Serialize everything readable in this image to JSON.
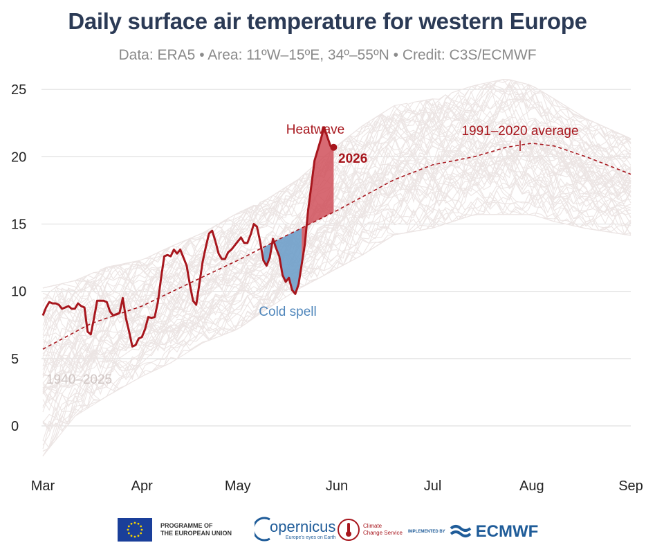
{
  "title": "Daily surface air temperature for western Europe",
  "subtitle": "Data: ERA5 • Area: 11ºW–15ºE, 34º–55ºN • Credit: C3S/ECMWF",
  "colors": {
    "current": "#a7161d",
    "heatwave_fill": "#d0505a",
    "cold_fill": "#6f9fc9",
    "history": "#ece5e4",
    "grid": "#d9d9d9"
  },
  "chart_data": {
    "type": "line",
    "x_axis": {
      "categories": [
        "Mar",
        "Apr",
        "May",
        "Jun",
        "Jul",
        "Aug",
        "Sep"
      ],
      "month_start_days": [
        0,
        31,
        61,
        92,
        122,
        153,
        184
      ]
    },
    "y_axis": {
      "ticks": [
        0,
        5,
        10,
        15,
        20,
        25
      ],
      "range": [
        -3.5,
        26.5
      ]
    },
    "grid": "horizontal",
    "annotations": {
      "history_label": "1940–2025",
      "average_label": "1991–2020 average",
      "heatwave_label": "Heatwave",
      "cold_label": "Cold spell",
      "current_label": "2026"
    },
    "history_envelope": {
      "x": [
        0,
        10,
        20,
        31,
        40,
        50,
        61,
        70,
        80,
        92,
        100,
        110,
        122,
        135,
        145,
        153,
        160,
        170,
        184
      ],
      "lower": [
        -2.5,
        0.5,
        2,
        3.5,
        4.5,
        6,
        7,
        8.5,
        10,
        11.5,
        12.5,
        14,
        14.5,
        15.5,
        15.5,
        15.5,
        15,
        14.5,
        14
      ],
      "upper": [
        10.5,
        11,
        12,
        12.5,
        13.5,
        14.5,
        16,
        17,
        18.5,
        21,
        22.5,
        24,
        24.5,
        25.5,
        26,
        25.5,
        24.5,
        23,
        21.5
      ]
    },
    "series": [
      {
        "name": "1991–2020 average",
        "style": "dashed",
        "x": [
          0,
          15,
          31,
          45,
          61,
          75,
          92,
          110,
          122,
          135,
          145,
          153,
          160,
          170,
          184
        ],
        "y": [
          5.7,
          7.6,
          8.9,
          10.5,
          12.3,
          14.0,
          16.0,
          18.3,
          19.4,
          20.0,
          20.7,
          21.0,
          20.8,
          20.0,
          18.7
        ]
      },
      {
        "name": "2026",
        "style": "solid",
        "x": [
          0,
          1,
          2,
          3,
          4,
          5,
          6,
          7,
          8,
          9,
          10,
          11,
          12,
          13,
          14,
          15,
          16,
          17,
          18,
          19,
          20,
          21,
          22,
          23,
          24,
          25,
          26,
          27,
          28,
          29,
          30,
          31,
          32,
          33,
          34,
          35,
          36,
          37,
          38,
          39,
          40,
          41,
          42,
          43,
          44,
          45,
          46,
          47,
          48,
          49,
          50,
          51,
          52,
          53,
          54,
          55,
          56,
          57,
          58,
          59,
          60,
          61,
          62,
          63,
          64,
          65,
          66,
          67,
          68,
          69,
          70,
          71,
          72,
          73,
          74,
          75,
          76,
          77,
          78,
          79,
          80,
          81,
          82,
          83,
          84,
          85,
          86,
          87,
          88,
          89,
          90
        ],
        "y": [
          8.2,
          8.8,
          9.2,
          9.1,
          9.1,
          9.0,
          8.7,
          8.8,
          8.9,
          8.7,
          8.7,
          9.1,
          8.9,
          8.8,
          7.0,
          6.8,
          8.0,
          9.3,
          9.3,
          9.3,
          9.2,
          8.5,
          8.2,
          8.3,
          8.4,
          9.5,
          8.0,
          7.0,
          5.9,
          6.0,
          6.5,
          6.6,
          7.2,
          8.1,
          8.0,
          8.1,
          9.2,
          11.0,
          12.6,
          12.7,
          12.6,
          13.1,
          12.8,
          13.1,
          12.5,
          11.9,
          10.5,
          9.3,
          9.0,
          10.6,
          12.2,
          13.3,
          14.3,
          14.5,
          13.7,
          12.8,
          12.4,
          12.4,
          12.9,
          13.1,
          13.4,
          13.7,
          14.0,
          13.6,
          13.6,
          14.2,
          15.0,
          14.8,
          13.7,
          12.3,
          11.9,
          12.5,
          13.9,
          13.2,
          12.6,
          11.2,
          10.7,
          11.0,
          10.1,
          9.8,
          10.5,
          12.0,
          13.5,
          16.0,
          17.8,
          19.7,
          20.5,
          21.3,
          22.2,
          21.5,
          20.8
        ]
      }
    ],
    "last_point": {
      "x": 91,
      "y": 20.7
    },
    "heatwave_region": {
      "x_start": 81,
      "x_end": 91
    },
    "cold_region": {
      "x_start": 69,
      "x_end": 81
    }
  },
  "footer": {
    "eu_line1": "PROGRAMME OF",
    "eu_line2": "THE EUROPEAN UNION",
    "copernicus": "opernicus",
    "copernicus_sub": "Europe's eyes on Earth",
    "c3s_line1": "Climate",
    "c3s_line2": "Change Service",
    "implemented": "IMPLEMENTED BY",
    "ecmwf": "ECMWF"
  }
}
